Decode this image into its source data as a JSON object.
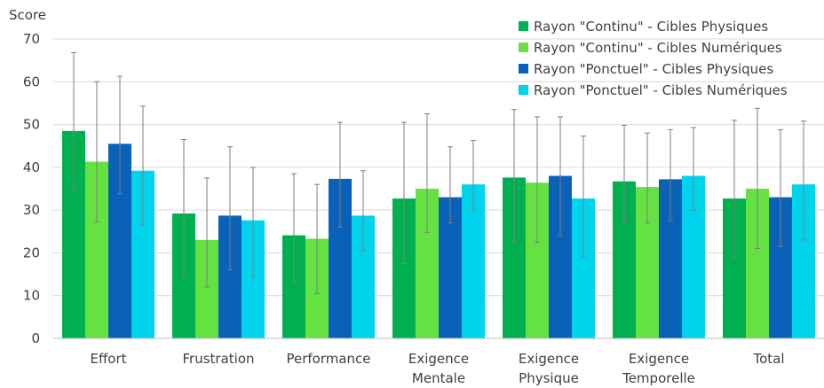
{
  "chart_data": {
    "type": "bar",
    "ylabel": "Score",
    "ylim": [
      0,
      70
    ],
    "yticks": [
      0,
      10,
      20,
      30,
      40,
      50,
      60,
      70
    ],
    "grid": true,
    "legend_position": "top-right",
    "categories": [
      [
        "Effort"
      ],
      [
        "Frustration"
      ],
      [
        "Performance"
      ],
      [
        "Exigence",
        "Mentale"
      ],
      [
        "Exigence",
        "Physique"
      ],
      [
        "Exigence",
        "Temporelle"
      ],
      [
        "Total"
      ]
    ],
    "series": [
      {
        "name": "Rayon \"Continu\" - Cibles Physiques",
        "color": "#00b050",
        "values": [
          48.5,
          29.2,
          24.1,
          32.7,
          37.6,
          36.7,
          32.7
        ],
        "error_low": [
          34.5,
          14.5,
          13.0,
          17.5,
          22.5,
          27.0,
          19.0
        ],
        "error_high": [
          66.8,
          46.5,
          38.5,
          50.5,
          53.5,
          49.8,
          51.0
        ]
      },
      {
        "name": "Rayon \"Continu\" - Cibles Numériques",
        "color": "#66e142",
        "values": [
          41.3,
          23.0,
          23.3,
          35.0,
          36.4,
          35.4,
          35.0
        ],
        "error_low": [
          27.2,
          12.0,
          10.5,
          24.8,
          22.5,
          27.0,
          21.0
        ],
        "error_high": [
          60.0,
          37.5,
          36.0,
          52.5,
          51.8,
          48.0,
          53.8
        ]
      },
      {
        "name": "Rayon \"Ponctuel\" - Cibles Physiques",
        "color": "#0a62b8",
        "values": [
          45.5,
          28.7,
          37.3,
          33.0,
          38.0,
          37.2,
          33.0
        ],
        "error_low": [
          33.8,
          16.0,
          26.0,
          27.0,
          24.0,
          27.5,
          21.5
        ],
        "error_high": [
          61.3,
          44.8,
          50.5,
          44.8,
          51.8,
          48.8,
          48.8
        ]
      },
      {
        "name": "Rayon \"Ponctuel\" - Cibles Numériques",
        "color": "#00d4ec",
        "values": [
          39.2,
          27.6,
          28.7,
          36.0,
          32.7,
          38.0,
          36.0
        ],
        "error_low": [
          26.5,
          14.5,
          20.5,
          30.0,
          19.0,
          30.0,
          23.0
        ],
        "error_high": [
          54.3,
          40.0,
          39.2,
          46.3,
          47.3,
          49.3,
          50.8
        ]
      }
    ]
  }
}
